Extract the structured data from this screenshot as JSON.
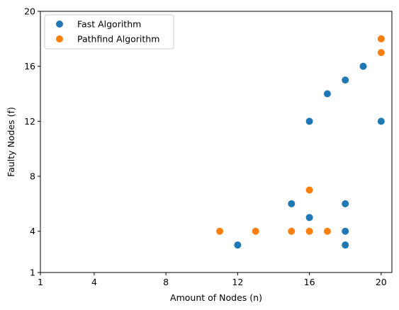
{
  "chart_data": {
    "type": "scatter",
    "title": "",
    "xlabel": "Amount of Nodes (n)",
    "ylabel": "Faulty Nodes (f)",
    "xlim": [
      1,
      20.6
    ],
    "ylim": [
      1,
      20
    ],
    "xticks": [
      1,
      4,
      8,
      12,
      16,
      20
    ],
    "yticks": [
      1,
      4,
      8,
      12,
      16,
      20
    ],
    "grid": false,
    "legend_position": "top-left",
    "series": [
      {
        "name": "Fast Algorithm",
        "color": "#1f77b4",
        "points": [
          [
            12,
            3
          ],
          [
            15,
            6
          ],
          [
            16,
            5
          ],
          [
            16,
            12
          ],
          [
            17,
            14
          ],
          [
            18,
            3
          ],
          [
            18,
            4
          ],
          [
            18,
            6
          ],
          [
            18,
            15
          ],
          [
            19,
            16
          ],
          [
            20,
            12
          ]
        ]
      },
      {
        "name": "Pathfind Algorithm",
        "color": "#ff7f0e",
        "points": [
          [
            11,
            4
          ],
          [
            13,
            4
          ],
          [
            15,
            4
          ],
          [
            16,
            4
          ],
          [
            16,
            7
          ],
          [
            17,
            4
          ],
          [
            20,
            17
          ],
          [
            20,
            18
          ]
        ]
      }
    ]
  }
}
